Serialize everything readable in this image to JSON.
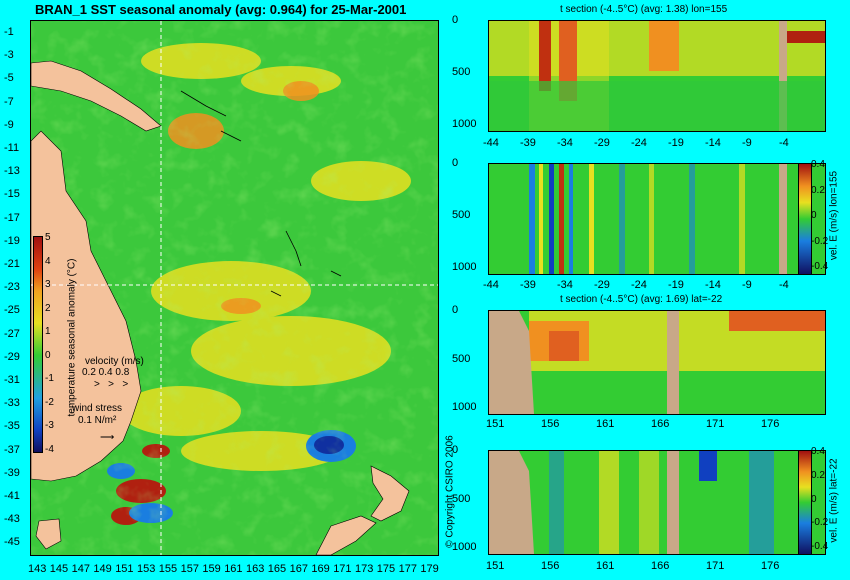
{
  "map": {
    "title": "BRAN_1 SST seasonal anomaly (avg: 0.964) for 25-Mar-2001",
    "lat_ticks": [
      "-1",
      "-3",
      "-5",
      "-7",
      "-9",
      "-11",
      "-13",
      "-15",
      "-17",
      "-19",
      "-21",
      "-23",
      "-25",
      "-27",
      "-29",
      "-31",
      "-33",
      "-35",
      "-37",
      "-39",
      "-41",
      "-43",
      "-45"
    ],
    "lon_ticks": [
      "143",
      "145",
      "147",
      "149",
      "151",
      "153",
      "155",
      "157",
      "159",
      "161",
      "163",
      "165",
      "167",
      "169",
      "171",
      "173",
      "175",
      "177",
      "179"
    ],
    "colorbar_ticks": [
      "5",
      "4",
      "3",
      "2",
      "1",
      "0",
      "-1",
      "-2",
      "-3",
      "-4"
    ],
    "colorbar_label": "temperature seasonal anomaly (°C)",
    "velocity_label": "velocity (m/s)",
    "velocity_values": "0.2 0.4 0.8",
    "wind_label": "wind stress",
    "wind_value": "0.1 N/m²",
    "copyright": "© Copyright CSIRO 2006"
  },
  "chart_data": [
    {
      "type": "heatmap",
      "title": "BRAN_1 SST seasonal anomaly (avg: 0.964) for 25-Mar-2001",
      "xlim": [
        143,
        180
      ],
      "ylim": [
        -45,
        0
      ],
      "colorbar_range": [
        -4,
        5
      ],
      "colorbar_label": "temperature seasonal anomaly (°C)",
      "crosshair": {
        "lon": 155,
        "lat": -22
      }
    },
    {
      "type": "heatmap",
      "title": "t section (-4..5°C) (avg: 1.38) lon=155",
      "x_ticks": [
        "-44",
        "-39",
        "-34",
        "-29",
        "-24",
        "-19",
        "-14",
        "-9",
        "-4"
      ],
      "y_ticks": [
        "0",
        "500",
        "1000"
      ],
      "xlim": [
        -45,
        0
      ],
      "ylim": [
        1050,
        0
      ]
    },
    {
      "type": "heatmap",
      "title": "",
      "x_ticks": [
        "-44",
        "-39",
        "-34",
        "-29",
        "-24",
        "-19",
        "-14",
        "-9",
        "-4"
      ],
      "y_ticks": [
        "0",
        "500",
        "1000"
      ],
      "colorbar_ticks": [
        "0.4",
        "0.2",
        "0",
        "-0.2",
        "-0.4"
      ],
      "colorbar_label": "vel. E (m/s) lon=155"
    },
    {
      "type": "heatmap",
      "title": "t section (-4..5°C) (avg: 1.69) lat=-22",
      "x_ticks": [
        "151",
        "156",
        "161",
        "166",
        "171",
        "176"
      ],
      "y_ticks": [
        "0",
        "500",
        "1000"
      ],
      "xlim": [
        150,
        180
      ],
      "ylim": [
        1050,
        0
      ]
    },
    {
      "type": "heatmap",
      "title": "",
      "x_ticks": [
        "151",
        "156",
        "161",
        "166",
        "171",
        "176"
      ],
      "y_ticks": [
        "0",
        "500",
        "1000"
      ],
      "colorbar_ticks": [
        "0.4",
        "0.2",
        "0",
        "-0.2",
        "-0.4"
      ],
      "colorbar_label": "vel. E (m/s) lat=-22"
    }
  ],
  "sections": {
    "lon_title": "t section (-4..5°C) (avg: 1.38) lon=155",
    "lat_title": "t section (-4..5°C) (avg: 1.69) lat=-22",
    "lon_vel_label": "vel. E (m/s) lon=155",
    "lat_vel_label": "vel. E (m/s) lat=-22",
    "lon_x_ticks": [
      "-44",
      "-39",
      "-34",
      "-29",
      "-24",
      "-19",
      "-14",
      "-9",
      "-4"
    ],
    "lat_x_ticks": [
      "151",
      "156",
      "161",
      "166",
      "171",
      "176"
    ],
    "depth_ticks": [
      "0",
      "500",
      "1000"
    ],
    "vel_ticks": [
      "0.4",
      "0.2",
      "0",
      "-0.2",
      "-0.4"
    ]
  },
  "colors": {
    "background": "#00ffff",
    "land": "#f4c29c",
    "section_land": "#c8a888",
    "ocean_base": "#33cc33"
  }
}
